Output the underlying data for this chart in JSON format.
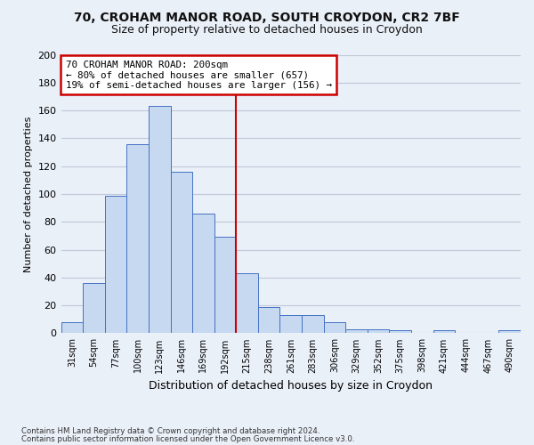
{
  "title_line1": "70, CROHAM MANOR ROAD, SOUTH CROYDON, CR2 7BF",
  "title_line2": "Size of property relative to detached houses in Croydon",
  "xlabel": "Distribution of detached houses by size in Croydon",
  "ylabel": "Number of detached properties",
  "categories": [
    "31sqm",
    "54sqm",
    "77sqm",
    "100sqm",
    "123sqm",
    "146sqm",
    "169sqm",
    "192sqm",
    "215sqm",
    "238sqm",
    "261sqm",
    "283sqm",
    "306sqm",
    "329sqm",
    "352sqm",
    "375sqm",
    "398sqm",
    "421sqm",
    "444sqm",
    "467sqm",
    "490sqm"
  ],
  "values": [
    8,
    36,
    99,
    136,
    163,
    116,
    86,
    69,
    43,
    19,
    13,
    13,
    8,
    3,
    3,
    2,
    0,
    2,
    0,
    0,
    2
  ],
  "bar_color": "#c6d9f0",
  "bar_edge_color": "#4472c4",
  "property_line_x": 7.5,
  "annotation_line1": "70 CROHAM MANOR ROAD: 200sqm",
  "annotation_line2": "← 80% of detached houses are smaller (657)",
  "annotation_line3": "19% of semi-detached houses are larger (156) →",
  "annotation_box_color": "#ffffff",
  "annotation_box_edge_color": "#cc0000",
  "vline_color": "#cc0000",
  "ylim": [
    0,
    200
  ],
  "yticks": [
    0,
    20,
    40,
    60,
    80,
    100,
    120,
    140,
    160,
    180,
    200
  ],
  "grid_color": "#c0c8d8",
  "background_color": "#eaf0f8",
  "footer_line1": "Contains HM Land Registry data © Crown copyright and database right 2024.",
  "footer_line2": "Contains public sector information licensed under the Open Government Licence v3.0."
}
